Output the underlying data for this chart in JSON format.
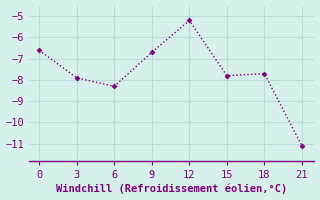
{
  "x": [
    0,
    3,
    6,
    9,
    12,
    15,
    18,
    21
  ],
  "y": [
    -6.6,
    -7.9,
    -8.3,
    -6.7,
    -5.2,
    -7.8,
    -7.7,
    -11.1
  ],
  "line_color": "#800080",
  "marker": "D",
  "marker_size": 2.5,
  "line_width": 1.0,
  "line_style": ":",
  "background_color": "#d6f0ec",
  "grid_color": "#b8ddd9",
  "xlabel": "Windchill (Refroidissement éolien,°C)",
  "xlabel_color": "#800080",
  "xlabel_fontsize": 7.5,
  "tick_color": "#800080",
  "tick_fontsize": 7.5,
  "xlim": [
    -0.8,
    22.0
  ],
  "ylim": [
    -11.8,
    -4.5
  ],
  "xticks": [
    0,
    3,
    6,
    9,
    12,
    15,
    18,
    21
  ],
  "yticks": [
    -5,
    -6,
    -7,
    -8,
    -9,
    -10,
    -11
  ],
  "spine_color": "#800080"
}
